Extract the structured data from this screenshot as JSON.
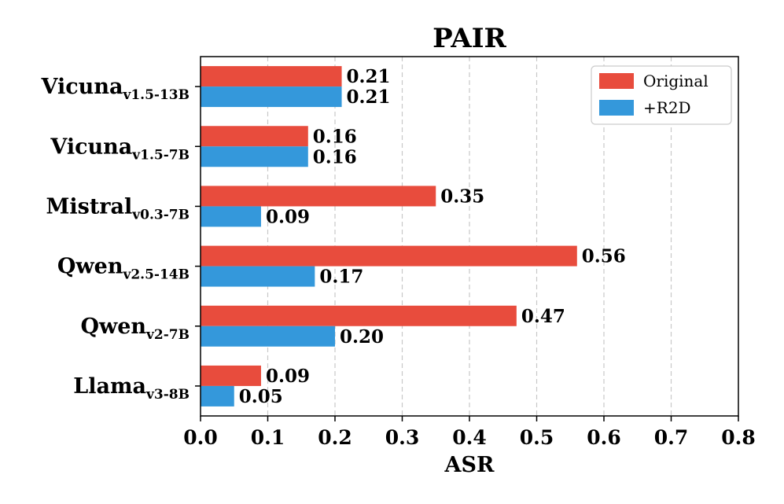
{
  "chart_data": {
    "type": "bar",
    "orientation": "horizontal",
    "title": "PAIR",
    "xlabel": "ASR",
    "ylabel": "",
    "xlim": [
      0.0,
      0.8
    ],
    "xticks": [
      "0.0",
      "0.1",
      "0.2",
      "0.3",
      "0.4",
      "0.5",
      "0.6",
      "0.7",
      "0.8"
    ],
    "grid": "vertical dashed",
    "legend_position": "top-right",
    "categories": [
      {
        "name": "Vicuna",
        "sub": "v1.5-13B"
      },
      {
        "name": "Vicuna",
        "sub": "v1.5-7B"
      },
      {
        "name": "Mistral",
        "sub": "v0.3-7B"
      },
      {
        "name": "Qwen",
        "sub": "v2.5-14B"
      },
      {
        "name": "Qwen",
        "sub": "v2-7B"
      },
      {
        "name": "Llama",
        "sub": "v3-8B"
      }
    ],
    "series": [
      {
        "name": "Original",
        "color": "#e84c3d",
        "values": [
          0.21,
          0.16,
          0.35,
          0.56,
          0.47,
          0.09
        ],
        "labels": [
          "0.21",
          "0.16",
          "0.35",
          "0.56",
          "0.47",
          "0.09"
        ]
      },
      {
        "name": "+R2D",
        "color": "#3498db",
        "values": [
          0.21,
          0.16,
          0.09,
          0.17,
          0.2,
          0.05
        ],
        "labels": [
          "0.21",
          "0.16",
          "0.09",
          "0.17",
          "0.20",
          "0.05"
        ]
      }
    ]
  }
}
